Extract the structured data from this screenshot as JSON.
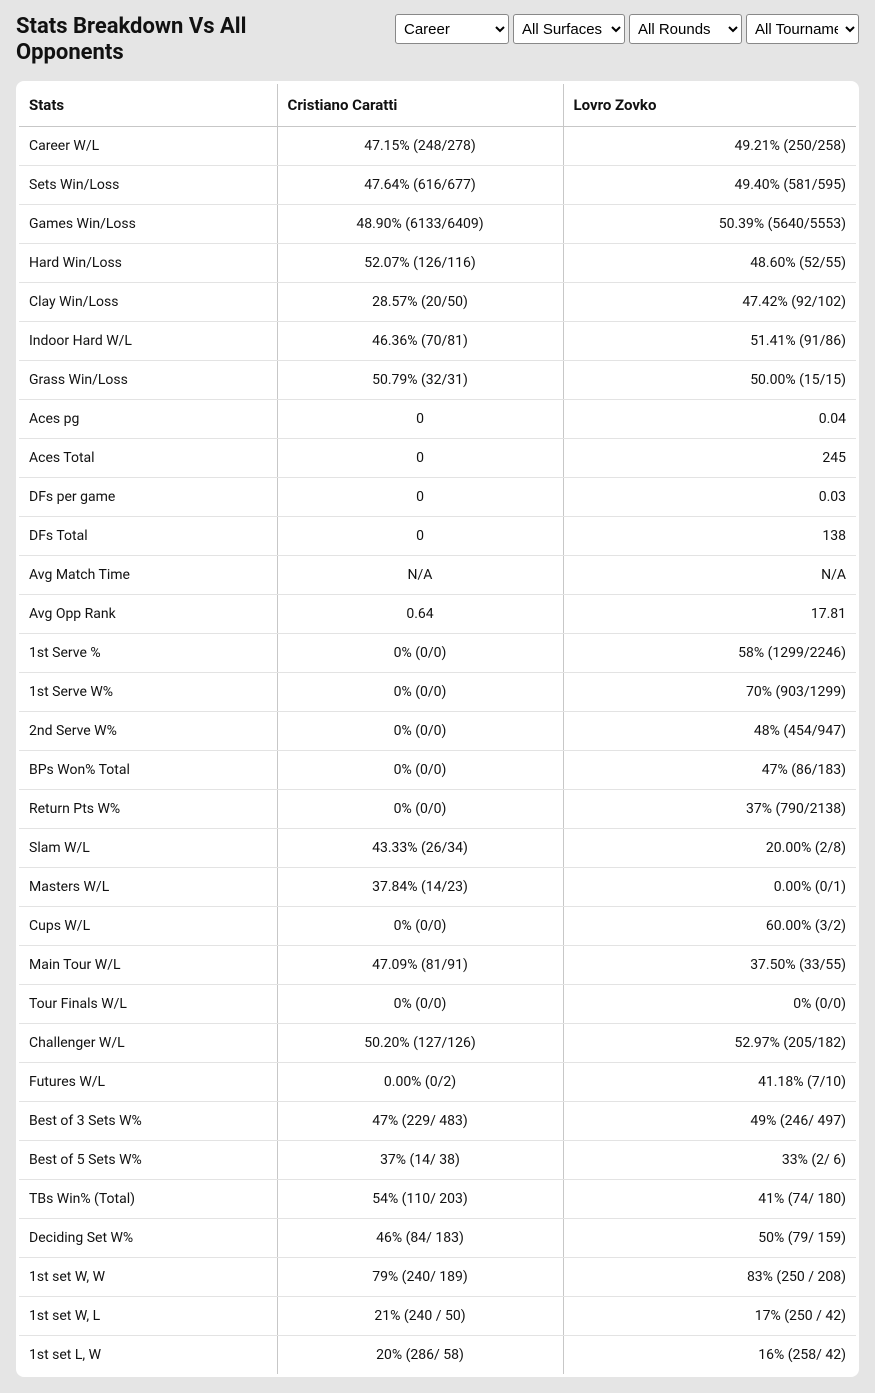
{
  "header": {
    "title": "Stats Breakdown Vs All Opponents"
  },
  "filters": {
    "career": {
      "selected": "Career",
      "options": [
        "Career"
      ]
    },
    "surface": {
      "selected": "All Surfaces",
      "options": [
        "All Surfaces"
      ]
    },
    "rounds": {
      "selected": "All Rounds",
      "options": [
        "All Rounds"
      ]
    },
    "tournaments": {
      "selected": "All Tournaments",
      "options": [
        "All Tournaments"
      ]
    }
  },
  "table": {
    "columns": [
      "Stats",
      "Cristiano Caratti",
      "Lovro Zovko"
    ],
    "rows": [
      [
        "Career W/L",
        "47.15% (248/278)",
        "49.21% (250/258)"
      ],
      [
        "Sets Win/Loss",
        "47.64% (616/677)",
        "49.40% (581/595)"
      ],
      [
        "Games Win/Loss",
        "48.90% (6133/6409)",
        "50.39% (5640/5553)"
      ],
      [
        "Hard Win/Loss",
        "52.07% (126/116)",
        "48.60% (52/55)"
      ],
      [
        "Clay Win/Loss",
        "28.57% (20/50)",
        "47.42% (92/102)"
      ],
      [
        "Indoor Hard W/L",
        "46.36% (70/81)",
        "51.41% (91/86)"
      ],
      [
        "Grass Win/Loss",
        "50.79% (32/31)",
        "50.00% (15/15)"
      ],
      [
        "Aces pg",
        "0",
        "0.04"
      ],
      [
        "Aces Total",
        "0",
        "245"
      ],
      [
        "DFs per game",
        "0",
        "0.03"
      ],
      [
        "DFs Total",
        "0",
        "138"
      ],
      [
        "Avg Match Time",
        "N/A",
        "N/A"
      ],
      [
        "Avg Opp Rank",
        "0.64",
        "17.81"
      ],
      [
        "1st Serve %",
        "0% (0/0)",
        "58% (1299/2246)"
      ],
      [
        "1st Serve W%",
        "0% (0/0)",
        "70% (903/1299)"
      ],
      [
        "2nd Serve W%",
        "0% (0/0)",
        "48% (454/947)"
      ],
      [
        "BPs Won% Total",
        "0% (0/0)",
        "47% (86/183)"
      ],
      [
        "Return Pts W%",
        "0% (0/0)",
        "37% (790/2138)"
      ],
      [
        "Slam W/L",
        "43.33% (26/34)",
        "20.00% (2/8)"
      ],
      [
        "Masters W/L",
        "37.84% (14/23)",
        "0.00% (0/1)"
      ],
      [
        "Cups W/L",
        "0% (0/0)",
        "60.00% (3/2)"
      ],
      [
        "Main Tour W/L",
        "47.09% (81/91)",
        "37.50% (33/55)"
      ],
      [
        "Tour Finals W/L",
        "0% (0/0)",
        "0% (0/0)"
      ],
      [
        "Challenger W/L",
        "50.20% (127/126)",
        "52.97% (205/182)"
      ],
      [
        "Futures W/L",
        "0.00% (0/2)",
        "41.18% (7/10)"
      ],
      [
        "Best of 3 Sets W%",
        "47% (229/ 483)",
        "49% (246/ 497)"
      ],
      [
        "Best of 5 Sets W%",
        "37% (14/ 38)",
        "33% (2/ 6)"
      ],
      [
        "TBs Win% (Total)",
        "54% (110/ 203)",
        "41% (74/ 180)"
      ],
      [
        "Deciding Set W%",
        "46% (84/ 183)",
        "50% (79/ 159)"
      ],
      [
        "1st set W, W",
        "79% (240/ 189)",
        "83% (250 / 208)"
      ],
      [
        "1st set W, L",
        "21% (240 / 50)",
        "17% (250 / 42)"
      ],
      [
        "1st set L, W",
        "20% (286/ 58)",
        "16% (258/ 42)"
      ]
    ]
  },
  "styling": {
    "background_color": "#e5e5e5",
    "table_background": "#ffffff",
    "header_border_color": "#c7c7c7",
    "row_border_color": "#e3e3e3",
    "text_color": "#111111",
    "title_fontsize": 22,
    "header_fontsize": 15,
    "cell_fontsize": 14
  }
}
